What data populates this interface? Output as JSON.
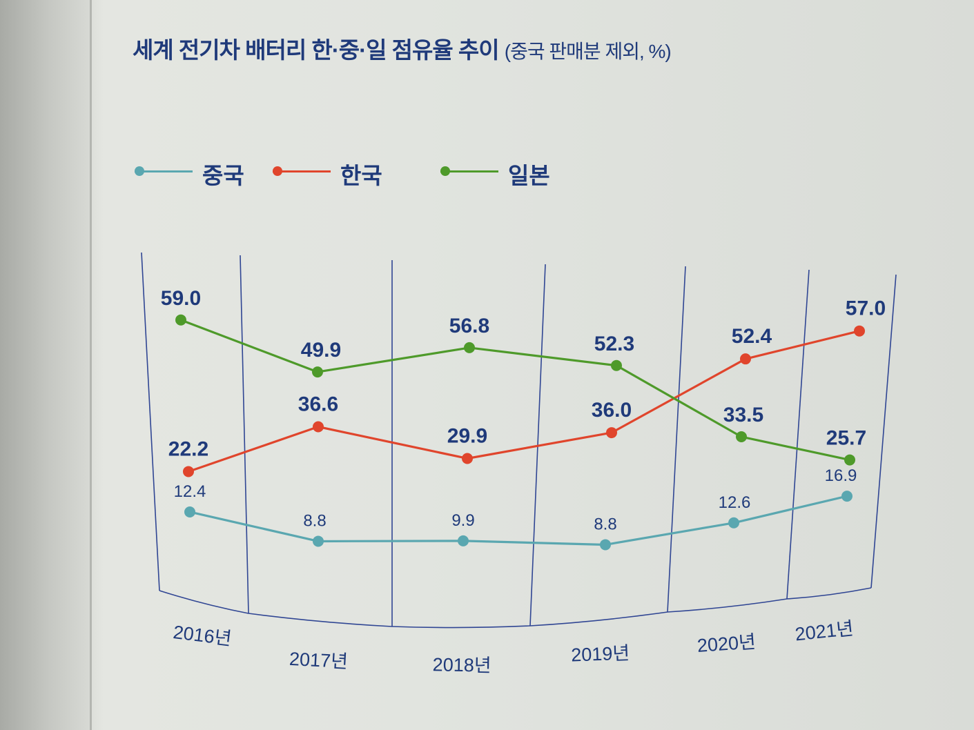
{
  "title": "세계 전기차 배터리 한·중·일 점유율 추이",
  "subtitle": "(중국 판매분 제외, %)",
  "chart_data": {
    "type": "line",
    "categories": [
      "2016년",
      "2017년",
      "2018년",
      "2019년",
      "2020년",
      "2021년"
    ],
    "series": [
      {
        "name": "중국",
        "color": "#5aa7b0",
        "values": [
          12.4,
          8.8,
          9.9,
          8.8,
          12.6,
          16.9
        ]
      },
      {
        "name": "한국",
        "color": "#e0452c",
        "values": [
          22.2,
          36.6,
          29.9,
          36.0,
          52.4,
          57.0
        ]
      },
      {
        "name": "일본",
        "color": "#4e9a2a",
        "values": [
          59.0,
          49.9,
          56.8,
          52.3,
          33.5,
          25.7
        ]
      }
    ],
    "value_labels": [
      [
        "12.4",
        "8.8",
        "9.9",
        "8.8",
        "12.6",
        "16.9"
      ],
      [
        "22.2",
        "36.6",
        "29.9",
        "36.0",
        "52.4",
        "57.0"
      ],
      [
        "59.0",
        "49.9",
        "56.8",
        "52.3",
        "33.5",
        "25.7"
      ]
    ],
    "legend_position": "top-left",
    "grid": "vertical"
  }
}
